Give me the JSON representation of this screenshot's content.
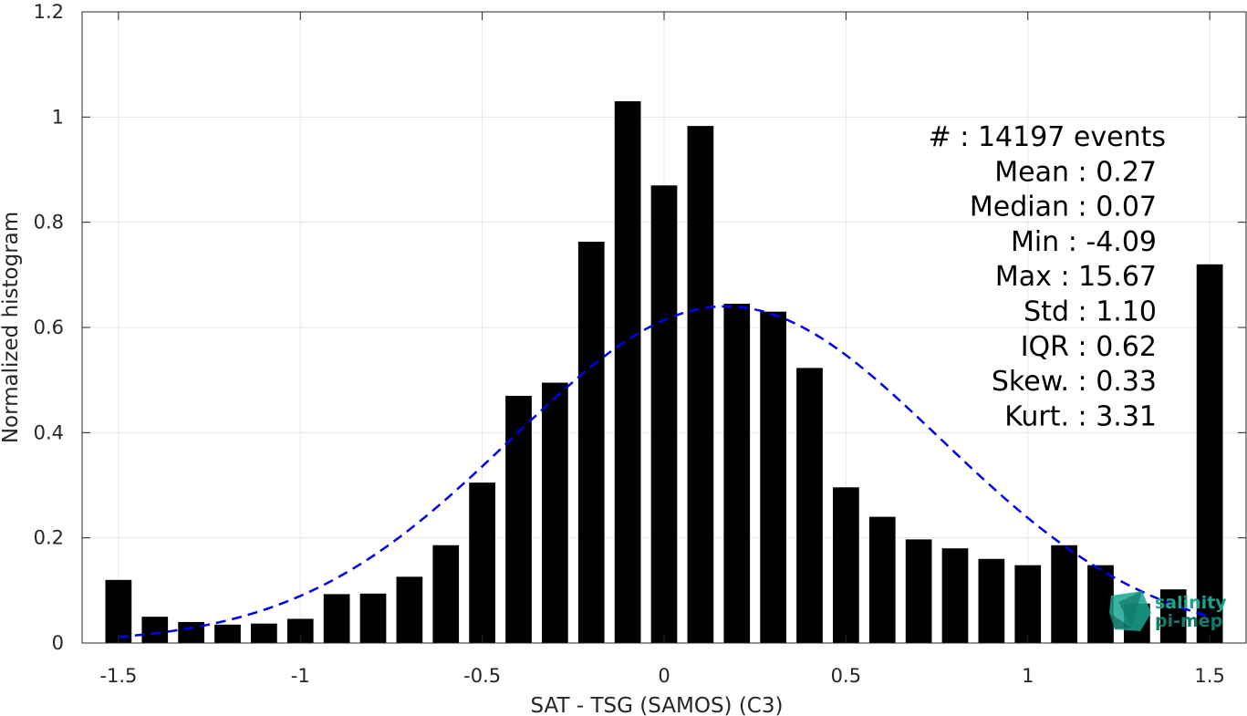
{
  "chart_data": {
    "type": "bar",
    "xlabel": "SAT - TSG (SAMOS) (C3)",
    "ylabel": "Normalized histogram",
    "xlim": [
      -1.6,
      1.6
    ],
    "ylim": [
      0,
      1.2
    ],
    "xticks": [
      -1.5,
      -1,
      -0.5,
      0,
      0.5,
      1,
      1.5
    ],
    "xtick_labels": [
      "-1.5",
      "-1",
      "-0.5",
      "0",
      "0.5",
      "1",
      "1.5"
    ],
    "yticks": [
      0,
      0.2,
      0.4,
      0.6,
      0.8,
      1.0,
      1.2
    ],
    "ytick_labels": [
      "0",
      "0.2",
      "0.4",
      "0.6",
      "0.8",
      "1",
      "1.2"
    ],
    "grid": true,
    "bar_color": "#000000",
    "x": [
      -1.5,
      -1.4,
      -1.3,
      -1.2,
      -1.1,
      -1.0,
      -0.9,
      -0.8,
      -0.7,
      -0.6,
      -0.5,
      -0.4,
      -0.3,
      -0.2,
      -0.1,
      0.0,
      0.1,
      0.2,
      0.3,
      0.4,
      0.5,
      0.6,
      0.7,
      0.8,
      0.9,
      1.0,
      1.1,
      1.2,
      1.3,
      1.4,
      1.5
    ],
    "values": [
      0.12,
      0.05,
      0.04,
      0.035,
      0.037,
      0.046,
      0.093,
      0.094,
      0.126,
      0.186,
      0.305,
      0.47,
      0.495,
      0.763,
      1.03,
      0.87,
      0.983,
      0.645,
      0.63,
      0.523,
      0.296,
      0.24,
      0.197,
      0.18,
      0.16,
      0.148,
      0.186,
      0.148,
      0.075,
      0.102,
      0.72
    ],
    "fit_curve": {
      "style": "dashed",
      "color": "#0000ee",
      "mean": 0.17,
      "std": 0.59,
      "peak": 0.64,
      "x_range": [
        -1.5,
        1.5
      ]
    },
    "stats": [
      "#  : 14197 events",
      "Mean : 0.27",
      "Median : 0.07",
      "Min : -4.09",
      "Max : 15.67",
      "Std : 1.10",
      "IQR : 0.62",
      "Skew. : 0.33",
      "Kurt. : 3.31"
    ]
  },
  "logo": {
    "line1": "salinity",
    "line2": "pi-mep",
    "color": "#1aa58f"
  }
}
